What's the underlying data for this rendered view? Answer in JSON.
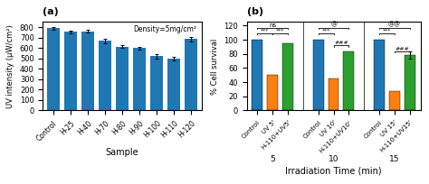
{
  "chart_data": [
    {
      "type": "bar",
      "title": "(a)",
      "categories": [
        "Control",
        "H-25",
        "H-40",
        "H-70",
        "H-80",
        "H-90",
        "H-100",
        "H-110",
        "H-120"
      ],
      "values": [
        790,
        755,
        760,
        670,
        615,
        600,
        520,
        500,
        685
      ],
      "errors": [
        15,
        12,
        12,
        20,
        15,
        12,
        18,
        15,
        18
      ],
      "xlabel": "Sample",
      "ylabel": "UV intensity (μW/cm²)",
      "ylim": [
        0,
        850
      ],
      "yticks": [
        0,
        100,
        200,
        300,
        400,
        500,
        600,
        700,
        800
      ],
      "annotation": "Density=5mg/cm²"
    },
    {
      "type": "bar",
      "title": "(b)",
      "groups": [
        {
          "label": "5",
          "categories": [
            "Control",
            "UV 5'",
            "H-110+UV5'"
          ],
          "values": [
            100,
            50,
            95
          ],
          "errors": [
            0,
            0,
            0
          ]
        },
        {
          "label": "10",
          "categories": [
            "Control",
            "UV 10'",
            "H-110+UV10'"
          ],
          "values": [
            100,
            45,
            83
          ],
          "errors": [
            0,
            0,
            0
          ]
        },
        {
          "label": "15",
          "categories": [
            "Control",
            "UV 15'",
            "H-110+UV15'"
          ],
          "values": [
            100,
            27,
            78
          ],
          "errors": [
            0,
            0,
            5
          ]
        }
      ],
      "xlabel": "Irradiation Time (min)",
      "ylabel": "% Cell survival",
      "ylim": [
        0,
        125
      ],
      "yticks": [
        0,
        20,
        40,
        60,
        80,
        100,
        120
      ],
      "brackets": [
        {
          "from": 0,
          "to": 2,
          "y": 117,
          "label": "ns"
        },
        {
          "from": 3,
          "to": 5,
          "y": 117,
          "label": "@"
        },
        {
          "from": 6,
          "to": 8,
          "y": 117,
          "label": "@@"
        },
        {
          "from": 0,
          "to": 1,
          "y": 109,
          "label": "***"
        },
        {
          "from": 1,
          "to": 2,
          "y": 109,
          "label": "***"
        },
        {
          "from": 3,
          "to": 4,
          "y": 109,
          "label": "***"
        },
        {
          "from": 4,
          "to": 5,
          "y": 92,
          "label": "###"
        },
        {
          "from": 6,
          "to": 7,
          "y": 109,
          "label": "***"
        },
        {
          "from": 7,
          "to": 8,
          "y": 84,
          "label": "###"
        }
      ]
    }
  ]
}
